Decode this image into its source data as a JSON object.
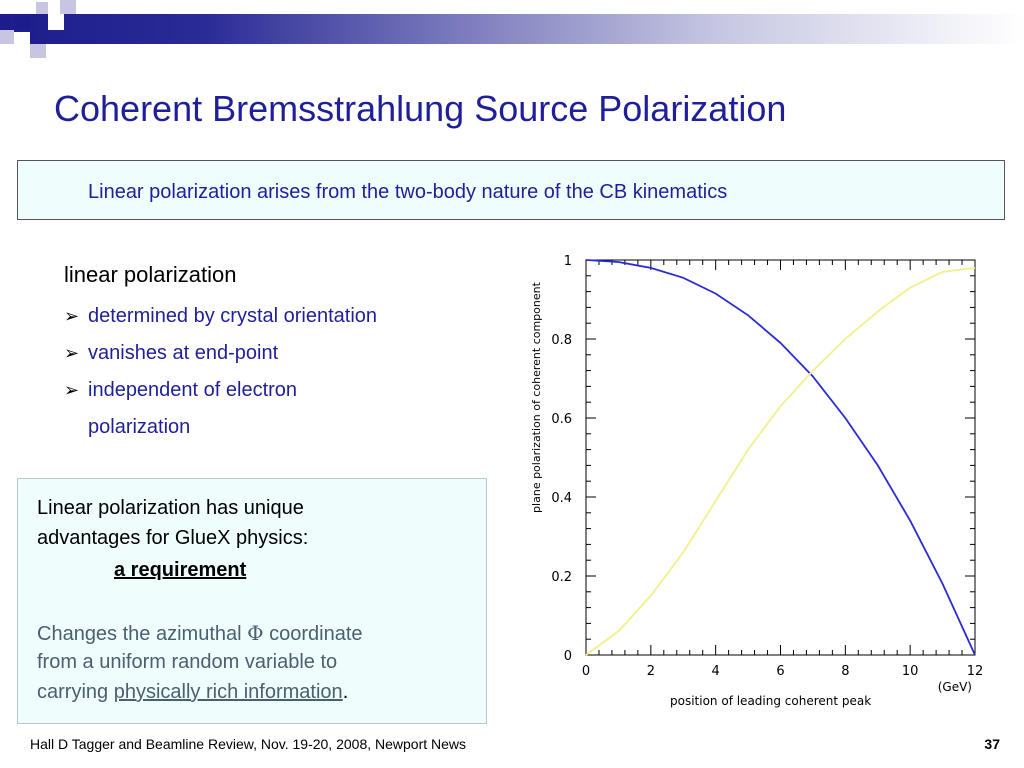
{
  "slide": {
    "title": "Coherent Bremsstrahlung Source Polarization",
    "callout": "Linear polarization arises from the two-body nature of the CB kinematics",
    "heading": "linear polarization",
    "bullets": [
      {
        "line1": "determined by crystal orientation"
      },
      {
        "line1": "vanishes at end-point"
      },
      {
        "line1": "independent of electron",
        "line2": "polarization"
      }
    ],
    "box": {
      "line1": "Linear polarization has unique",
      "line2": "advantages for GlueX physics:",
      "requirement": "a requirement",
      "changes_prefix": "Changes the azimuthal ",
      "phi_symbol": "Φ",
      "changes_suffix": " coordinate",
      "line5": "from a uniform random variable to",
      "line6_prefix": "carrying ",
      "line6_link": "physically rich information",
      "line6_suffix": "."
    },
    "footer": {
      "text": "Hall D Tagger and Beamline Review, Nov. 19-20, 2008, Newport News",
      "page": "37"
    }
  },
  "chart_data": {
    "type": "line",
    "xlabel": "position of leading coherent peak",
    "xunit": "(GeV)",
    "ylabel": "plane polarization of coherent component",
    "xlim": [
      0,
      12
    ],
    "ylim": [
      0,
      1
    ],
    "xticks": [
      0,
      2,
      4,
      6,
      8,
      10,
      12
    ],
    "yticks": [
      0,
      0.2,
      0.4,
      0.6,
      0.8,
      1
    ],
    "grid": false,
    "series": [
      {
        "color": "#2a2ad6",
        "x": [
          0,
          1,
          2,
          3,
          4,
          5,
          6,
          7,
          8,
          9,
          10,
          11,
          12
        ],
        "y": [
          1.0,
          0.995,
          0.98,
          0.955,
          0.915,
          0.86,
          0.79,
          0.705,
          0.6,
          0.48,
          0.34,
          0.18,
          0.0
        ]
      },
      {
        "color": "#f2f08a",
        "x": [
          0,
          1,
          2,
          3,
          4,
          5,
          6,
          7,
          8,
          9,
          10,
          11,
          12
        ],
        "y": [
          0.0,
          0.06,
          0.15,
          0.26,
          0.39,
          0.52,
          0.63,
          0.72,
          0.8,
          0.87,
          0.93,
          0.97,
          0.98
        ]
      }
    ]
  }
}
